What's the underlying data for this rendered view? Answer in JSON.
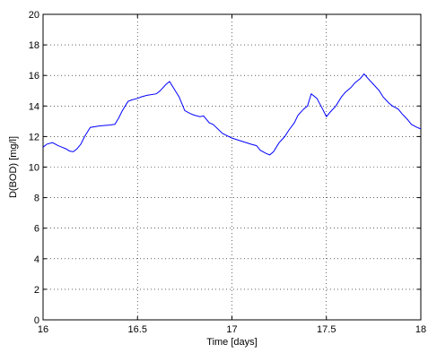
{
  "chart_data": {
    "type": "line",
    "xlabel": "Time [days]",
    "ylabel": "D(BOD) [mg/l]",
    "xlim": [
      16,
      18
    ],
    "ylim": [
      0,
      20
    ],
    "xticks": [
      16,
      16.5,
      17,
      17.5,
      18
    ],
    "xtick_labels": [
      "16",
      "16.5",
      "17",
      "17.5",
      "18"
    ],
    "yticks": [
      0,
      2,
      4,
      6,
      8,
      10,
      12,
      14,
      16,
      18,
      20
    ],
    "ytick_labels": [
      "0",
      "2",
      "4",
      "6",
      "8",
      "10",
      "12",
      "14",
      "16",
      "18",
      "20"
    ],
    "grid": true,
    "series": [
      {
        "color": "#0000ff",
        "x": [
          16.0,
          16.02,
          16.05,
          16.08,
          16.1,
          16.12,
          16.14,
          16.16,
          16.18,
          16.2,
          16.22,
          16.25,
          16.3,
          16.35,
          16.38,
          16.4,
          16.42,
          16.45,
          16.47,
          16.5,
          16.52,
          16.55,
          16.6,
          16.62,
          16.65,
          16.67,
          16.7,
          16.72,
          16.75,
          16.78,
          16.8,
          16.83,
          16.85,
          16.88,
          16.9,
          16.95,
          17.0,
          17.05,
          17.1,
          17.13,
          17.15,
          17.18,
          17.2,
          17.22,
          17.25,
          17.28,
          17.3,
          17.33,
          17.35,
          17.38,
          17.4,
          17.42,
          17.45,
          17.48,
          17.5,
          17.52,
          17.55,
          17.58,
          17.6,
          17.63,
          17.65,
          17.68,
          17.7,
          17.72,
          17.75,
          17.78,
          17.8,
          17.83,
          17.85,
          17.88,
          17.9,
          17.93,
          17.95,
          17.98,
          18.0
        ],
        "y": [
          11.3,
          11.5,
          11.6,
          11.4,
          11.3,
          11.2,
          11.05,
          11.0,
          11.2,
          11.5,
          12.0,
          12.6,
          12.7,
          12.75,
          12.8,
          13.2,
          13.7,
          14.3,
          14.4,
          14.5,
          14.6,
          14.7,
          14.8,
          15.0,
          15.4,
          15.6,
          15.0,
          14.6,
          13.7,
          13.5,
          13.4,
          13.3,
          13.35,
          12.9,
          12.8,
          12.2,
          11.9,
          11.7,
          11.5,
          11.4,
          11.1,
          10.9,
          10.8,
          11.0,
          11.6,
          12.0,
          12.4,
          12.9,
          13.4,
          13.8,
          14.0,
          14.8,
          14.5,
          13.8,
          13.3,
          13.6,
          14.0,
          14.6,
          14.9,
          15.2,
          15.5,
          15.8,
          16.1,
          15.8,
          15.4,
          15.0,
          14.6,
          14.2,
          14.0,
          13.8,
          13.5,
          13.1,
          12.8,
          12.6,
          12.5
        ]
      }
    ]
  }
}
